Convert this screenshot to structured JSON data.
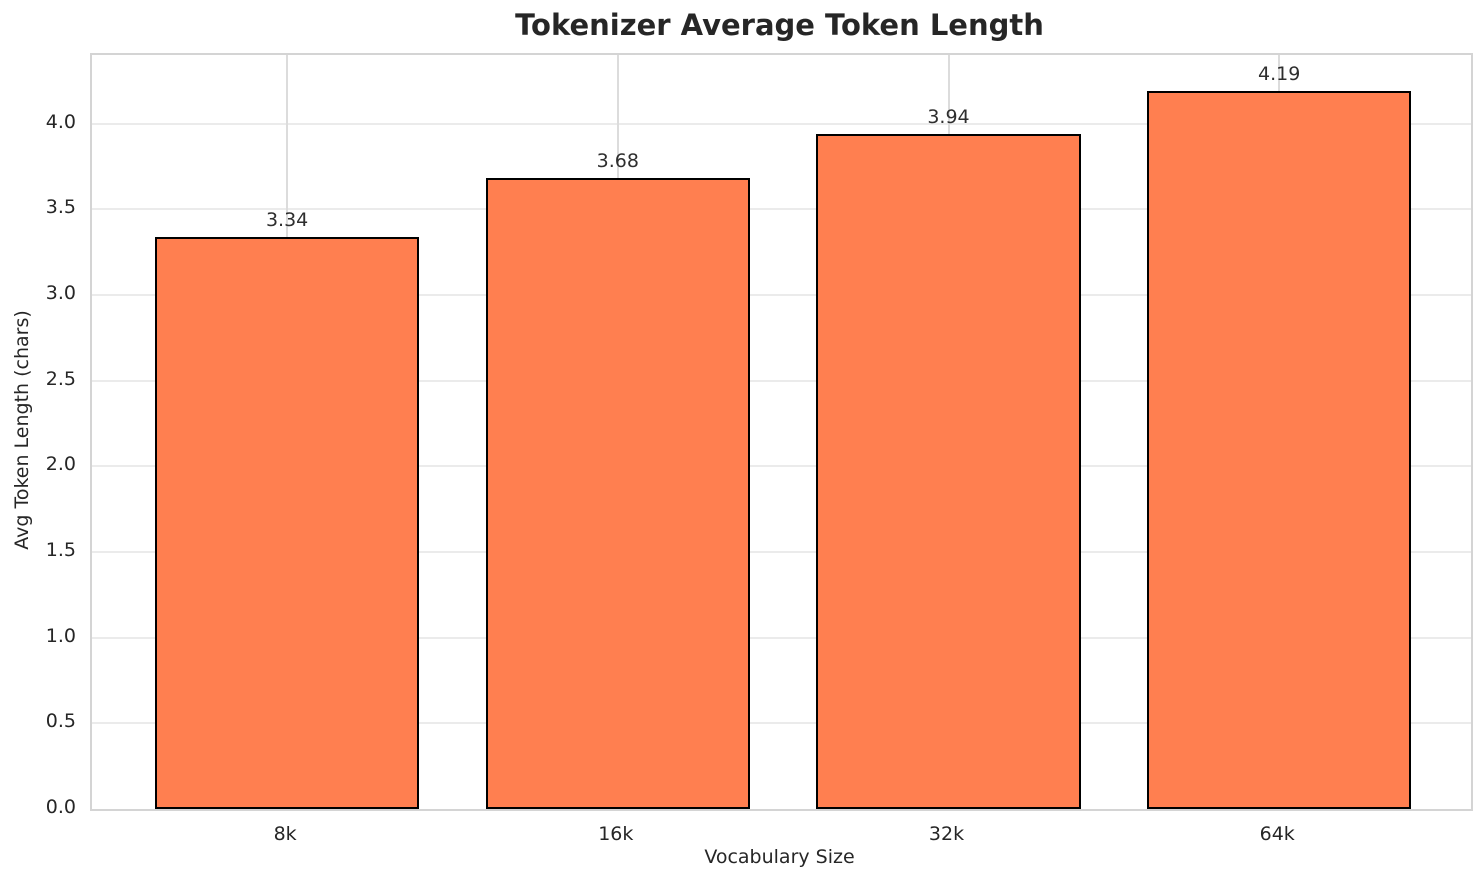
{
  "chart_data": {
    "type": "bar",
    "title": "Tokenizer Average Token Length",
    "xlabel": "Vocabulary Size",
    "ylabel": "Avg Token Length (chars)",
    "categories": [
      "8k",
      "16k",
      "32k",
      "64k"
    ],
    "values": [
      3.34,
      3.68,
      3.94,
      4.19
    ],
    "bar_value_labels": [
      "3.34",
      "3.68",
      "3.94",
      "4.19"
    ],
    "ylim": [
      0,
      4.4
    ],
    "yticks": [
      0.0,
      0.5,
      1.0,
      1.5,
      2.0,
      2.5,
      3.0,
      3.5,
      4.0
    ],
    "ytick_labels": [
      "0.0",
      "0.5",
      "1.0",
      "1.5",
      "2.0",
      "2.5",
      "3.0",
      "3.5",
      "4.0"
    ],
    "grid": true,
    "legend": null,
    "colors": {
      "bar_fill": "#FF7F50",
      "bar_edge": "#000000",
      "grid_horizontal": "#ebebeb",
      "grid_vertical": "#dcdcdc",
      "spine": "#d4d4d4",
      "text": "#262626",
      "background": "#ffffff"
    }
  }
}
